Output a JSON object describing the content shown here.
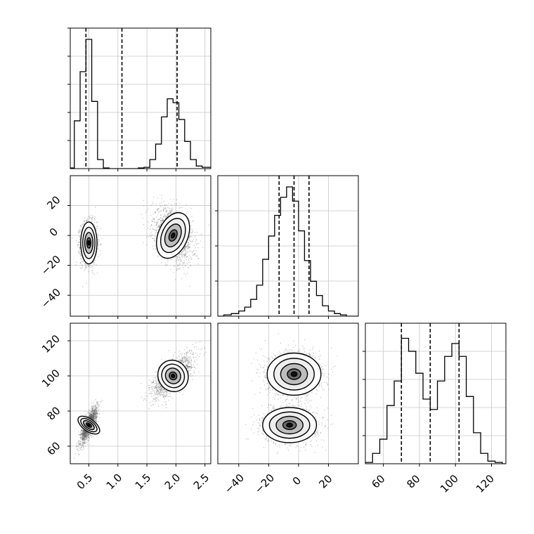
{
  "chart_data": {
    "type": "corner",
    "grid": true,
    "panels": [
      {
        "id": "hist-x",
        "type": "histogram",
        "xlim": [
          0.18,
          2.6
        ],
        "ylim": [
          0,
          1
        ],
        "bins": [
          [
            0.18,
            0.25,
            0.005
          ],
          [
            0.25,
            0.35,
            0.37
          ],
          [
            0.35,
            0.45,
            0.75
          ],
          [
            0.45,
            0.55,
            1.0
          ],
          [
            0.55,
            0.65,
            0.52
          ],
          [
            0.65,
            0.75,
            0.07
          ],
          [
            0.75,
            0.85,
            0.005
          ],
          [
            0.85,
            1.0,
            0
          ],
          [
            1.0,
            1.2,
            0
          ],
          [
            1.2,
            1.35,
            0
          ],
          [
            1.35,
            1.45,
            0.005
          ],
          [
            1.45,
            1.55,
            0.01
          ],
          [
            1.55,
            1.65,
            0.07
          ],
          [
            1.65,
            1.75,
            0.19
          ],
          [
            1.75,
            1.85,
            0.4
          ],
          [
            1.85,
            1.95,
            0.54
          ],
          [
            1.95,
            2.05,
            0.51
          ],
          [
            2.05,
            2.15,
            0.38
          ],
          [
            2.15,
            2.25,
            0.21
          ],
          [
            2.25,
            2.35,
            0.07
          ],
          [
            2.35,
            2.45,
            0.02
          ],
          [
            2.45,
            2.6,
            0.01
          ]
        ],
        "quantiles": [
          0.45,
          1.07,
          2.02
        ],
        "xticks": [
          0.5,
          1.0,
          1.5,
          2.0,
          2.5
        ],
        "yticks": [
          0.2,
          0.4,
          0.6,
          0.8,
          1.0
        ]
      },
      {
        "id": "hist-y",
        "type": "histogram",
        "xlim": [
          -54,
          40
        ],
        "ylim": [
          0,
          1
        ],
        "bins": [
          [
            -54,
            -50,
            0
          ],
          [
            -50,
            -45,
            0.01
          ],
          [
            -45,
            -40,
            0.02
          ],
          [
            -40,
            -36,
            0.04
          ],
          [
            -36,
            -32,
            0.07
          ],
          [
            -32,
            -28,
            0.13
          ],
          [
            -28,
            -24,
            0.24
          ],
          [
            -24,
            -20,
            0.44
          ],
          [
            -20,
            -16,
            0.62
          ],
          [
            -16,
            -12,
            0.78
          ],
          [
            -12,
            -8,
            0.92
          ],
          [
            -8,
            -4,
            1.0
          ],
          [
            -4,
            0,
            0.89
          ],
          [
            0,
            4,
            0.66
          ],
          [
            4,
            8,
            0.43
          ],
          [
            8,
            12,
            0.27
          ],
          [
            12,
            16,
            0.16
          ],
          [
            16,
            20,
            0.08
          ],
          [
            20,
            24,
            0.04
          ],
          [
            24,
            28,
            0.02
          ],
          [
            28,
            32,
            0.01
          ],
          [
            32,
            40,
            0.0
          ]
        ],
        "quantiles": [
          -13,
          -3,
          7
        ],
        "xticks": [
          -40,
          -20,
          0,
          20
        ],
        "yticks": [
          0.25,
          0.5,
          0.75
        ]
      },
      {
        "id": "hist-z",
        "type": "histogram",
        "xlim": [
          50,
          128
        ],
        "ylim": [
          0,
          1
        ],
        "bins": [
          [
            50,
            54,
            0.01
          ],
          [
            54,
            58,
            0.08
          ],
          [
            58,
            62,
            0.19
          ],
          [
            62,
            66,
            0.45
          ],
          [
            66,
            70,
            0.64
          ],
          [
            70,
            74,
            0.97
          ],
          [
            74,
            78,
            0.87
          ],
          [
            78,
            82,
            0.7
          ],
          [
            82,
            86,
            0.5
          ],
          [
            86,
            90,
            0.42
          ],
          [
            90,
            94,
            0.64
          ],
          [
            94,
            98,
            0.83
          ],
          [
            98,
            102,
            0.93
          ],
          [
            102,
            106,
            0.83
          ],
          [
            106,
            110,
            0.52
          ],
          [
            110,
            114,
            0.24
          ],
          [
            114,
            118,
            0.08
          ],
          [
            118,
            122,
            0.02
          ],
          [
            122,
            126,
            0.01
          ],
          [
            126,
            128,
            0
          ]
        ],
        "quantiles": [
          70,
          86,
          102
        ],
        "xticks": [
          60,
          80,
          100,
          120
        ],
        "yticks": [
          0.2,
          0.4,
          0.6,
          0.8
        ]
      },
      {
        "id": "scatter-xy",
        "type": "scatter-contour",
        "xlim": [
          0.18,
          2.6
        ],
        "ylim": [
          -54,
          40
        ],
        "xticks": [
          0.5,
          1.0,
          1.5,
          2.0,
          2.5
        ],
        "yticks": [
          -40,
          -20,
          0,
          20
        ],
        "clusters": [
          {
            "cx": 0.5,
            "cy": -5,
            "sx": 0.07,
            "sy": 7,
            "rho": 0.0,
            "n": 1600
          },
          {
            "cx": 1.95,
            "cy": 0,
            "sx": 0.17,
            "sy": 9,
            "rho": -0.35,
            "n": 1600
          }
        ]
      },
      {
        "id": "scatter-xz",
        "type": "scatter-contour",
        "xlim": [
          0.18,
          2.6
        ],
        "ylim": [
          50,
          130
        ],
        "xticks": [
          0.5,
          1.0,
          1.5,
          2.0,
          2.5
        ],
        "yticks": [
          60,
          80,
          100,
          120
        ],
        "clusters": [
          {
            "cx": 0.5,
            "cy": 72,
            "sx": 0.07,
            "sy": 5,
            "rho": 0.8,
            "n": 1600
          },
          {
            "cx": 1.95,
            "cy": 100,
            "sx": 0.17,
            "sy": 6,
            "rho": 0.7,
            "n": 1600
          }
        ]
      },
      {
        "id": "scatter-yz",
        "type": "scatter-contour",
        "xlim": [
          -54,
          40
        ],
        "ylim": [
          50,
          130
        ],
        "xticks": [
          -40,
          -20,
          0,
          20
        ],
        "yticks": [],
        "clusters": [
          {
            "cx": -6,
            "cy": 72,
            "sx": 9,
            "sy": 5,
            "rho": 0.0,
            "n": 1600
          },
          {
            "cx": -3,
            "cy": 101,
            "sx": 9,
            "sy": 6,
            "rho": 0.0,
            "n": 1600
          }
        ]
      }
    ]
  },
  "labels": {
    "x_ticks": [
      "0.5",
      "1.0",
      "1.5",
      "2.0",
      "2.5"
    ],
    "y_ticks_mid": [
      "20",
      "0",
      "−20",
      "−40"
    ],
    "y_ticks_bottom": [
      "120",
      "100",
      "80",
      "60"
    ],
    "x_ticks_mid": [
      "−40",
      "−20",
      "0",
      "20"
    ],
    "x_ticks_right": [
      "60",
      "80",
      "100",
      "120"
    ]
  }
}
